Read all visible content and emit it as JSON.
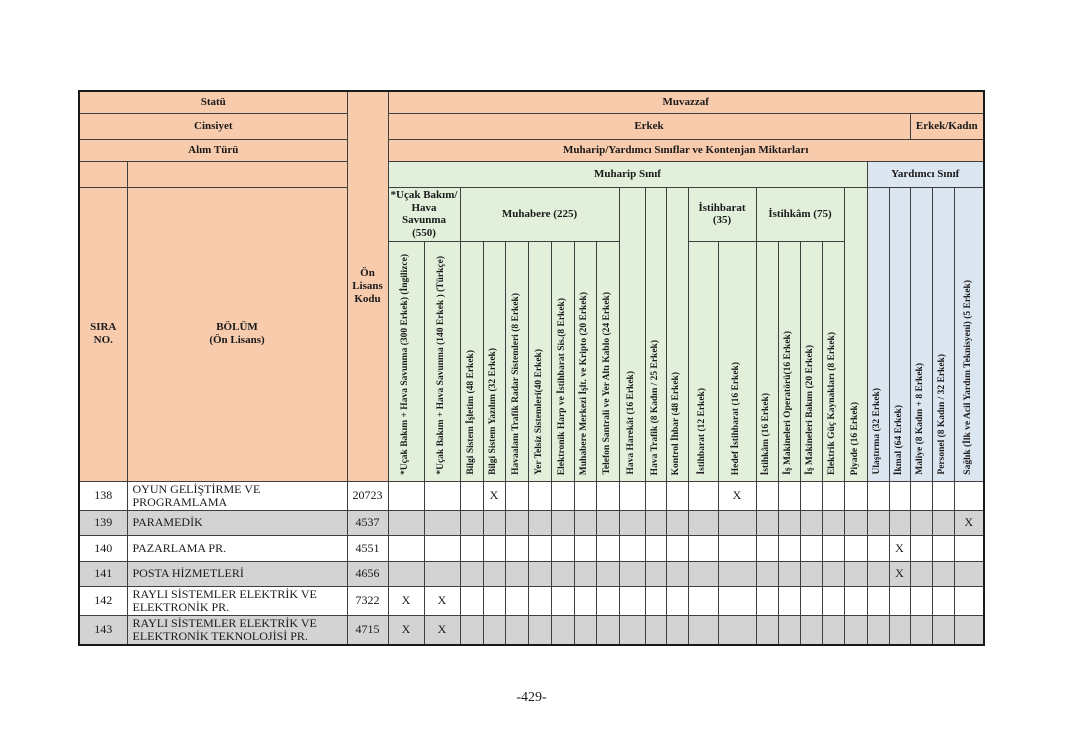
{
  "page": {
    "footer": "-429-"
  },
  "header": {
    "statu_label": "Statü",
    "statu_value": "Muvazzaf",
    "cinsiyet_label": "Cinsiyet",
    "cinsiyet_value_male": "Erkek",
    "cinsiyet_value_mixed": "Erkek/Kadın",
    "alim_label": "Alım Türü",
    "alim_value": "Muharip/Yardımcı Sınıflar ve Kontenjan Miktarları",
    "muharip_sinif": "Muharip Sınıf",
    "yardimci_sinif": "Yardımcı Sınıf",
    "sira_no": "SIRA\nNO.",
    "bolum": "BÖLÜM\n(Ön Lisans)",
    "on_lisans_kodu": "Ön\nLisans\nKodu"
  },
  "groups": [
    "*Uçak Bakım/\nHava\nSavunma\n(550)",
    "Muhabere (225)",
    "İstihbarat\n(35)",
    "İstihkâm (75)"
  ],
  "columns": [
    {
      "label": "*Uçak Bakım + Hava Savunma (300 Erkek) (İngilizce)",
      "zone": "g",
      "group": 0
    },
    {
      "label": "*Uçak Bakım + Hava Savunma (140 Erkek ) (Türkçe)",
      "zone": "g",
      "group": 0
    },
    {
      "label": "Bilgi Sistem İşletim (48 Erkek)",
      "zone": "g",
      "group": 1
    },
    {
      "label": "Bilgi Sistem Yazılım (32 Erkek)",
      "zone": "g",
      "group": 1
    },
    {
      "label": "Havaalanı Trafik Radar Sistemleri (8 Erkek)",
      "zone": "g",
      "group": 1
    },
    {
      "label": "Yer Telsiz Sistemleri(40 Erkek)",
      "zone": "g",
      "group": 1
    },
    {
      "label": "Elektronik Harp ve İstihbarat Sis.(8 Erkek)",
      "zone": "g",
      "group": 1
    },
    {
      "label": "Muhabere Merkezi İşlt. ve Kripto (20 Erkek)",
      "zone": "g",
      "group": 1
    },
    {
      "label": "Telefon Santrali ve Yer Altı Kablo (24 Erkek)",
      "zone": "g",
      "group": 1
    },
    {
      "label": "Hava Harekât (16 Erkek)",
      "zone": "g",
      "group": null
    },
    {
      "label": "Hava Trafik (8 Kadın / 25 Erkek)",
      "zone": "g",
      "group": null
    },
    {
      "label": "Kontrol İhbar (48 Erkek)",
      "zone": "g",
      "group": null
    },
    {
      "label": "İstihbarat (12 Erkek)",
      "zone": "g",
      "group": 2
    },
    {
      "label": "Hedef İstihbarat  (16 Erkek)",
      "zone": "g",
      "group": 2
    },
    {
      "label": "İstihkâm (16 Erkek)",
      "zone": "g",
      "group": 3
    },
    {
      "label": "İş Makineleri Operatörü(16 Erkek)",
      "zone": "g",
      "group": 3
    },
    {
      "label": "İş Makineleri Bakım (20 Erkek)",
      "zone": "g",
      "group": 3
    },
    {
      "label": "Elektrik Güç Kaynakları (8 Erkek)",
      "zone": "g",
      "group": 3
    },
    {
      "label": "Piyade (16 Erkek)",
      "zone": "g",
      "group": null
    },
    {
      "label": "Ulaştırma (32 Erkek)",
      "zone": "b",
      "group": null
    },
    {
      "label": "İkmal (64 Erkek)",
      "zone": "b",
      "group": null
    },
    {
      "label": "Maliye (8 Kadın + 8 Erkek)",
      "zone": "b",
      "group": null
    },
    {
      "label": "Personel  (8 Kadın / 32 Erkek)",
      "zone": "b",
      "group": null
    },
    {
      "label": "Sağlık (İlk ve Acil Yardım Teknisyeni) (5 Erkek)",
      "zone": "b",
      "group": null
    }
  ],
  "mark": "X",
  "rows": [
    {
      "no": "138",
      "bolum": "OYUN GELİŞTİRME VE PROGRAMLAMA",
      "kod": "20723",
      "marks": [
        4,
        14
      ],
      "shaded": false
    },
    {
      "no": "139",
      "bolum": "PARAMEDİK",
      "kod": "4537",
      "marks": [
        24
      ],
      "shaded": true
    },
    {
      "no": "140",
      "bolum": "PAZARLAMA PR.",
      "kod": "4551",
      "marks": [
        21
      ],
      "shaded": false
    },
    {
      "no": "141",
      "bolum": "POSTA HİZMETLERİ",
      "kod": "4656",
      "marks": [
        21
      ],
      "shaded": true
    },
    {
      "no": "142",
      "bolum": "RAYLI SİSTEMLER ELEKTRİK VE ELEKTRONİK PR.",
      "kod": "7322",
      "marks": [
        1,
        2
      ],
      "shaded": false
    },
    {
      "no": "143",
      "bolum": "RAYLI SİSTEMLER ELEKTRİK VE ELEKTRONİK TEKNOLOJİSİ PR.",
      "kod": "4715",
      "marks": [
        1,
        2
      ],
      "shaded": true
    }
  ],
  "colors": {
    "peach": "#f8cbad",
    "green": "#e2efda",
    "blue": "#dce6f1",
    "gray": "#d3d3d3"
  }
}
